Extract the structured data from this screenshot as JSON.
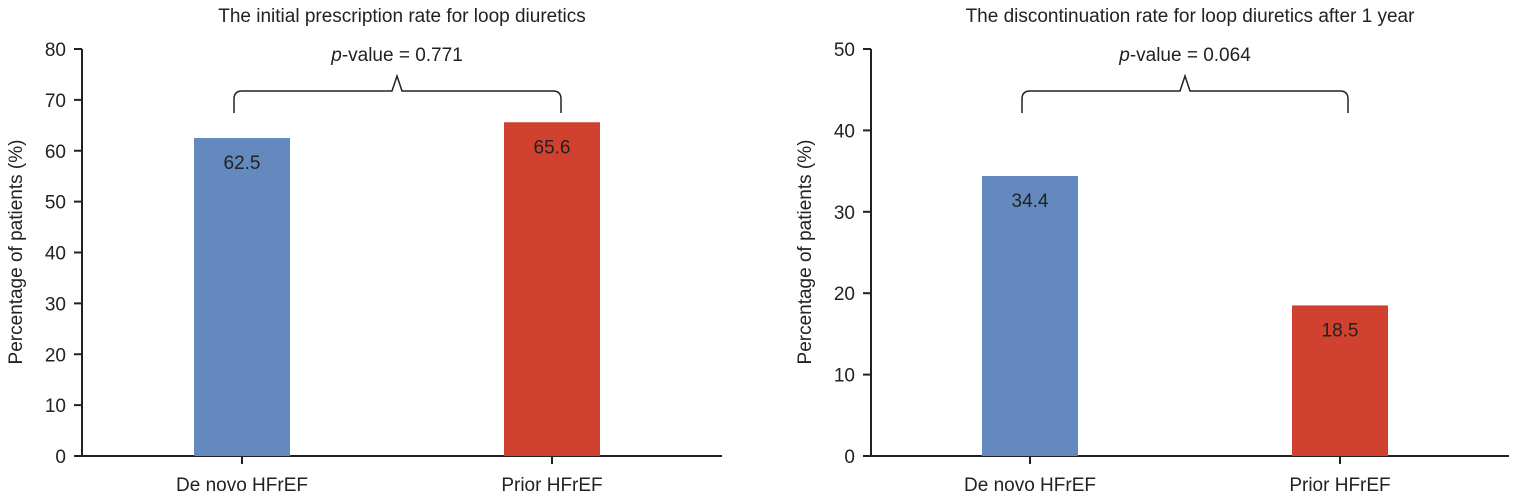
{
  "chart_data": [
    {
      "type": "bar",
      "title": "The initial prescription rate for loop diuretics",
      "ylabel": "Percentage of patients (%)",
      "xlabel": "",
      "categories": [
        "De novo HFrEF",
        "Prior HFrEF"
      ],
      "values": [
        62.5,
        65.6
      ],
      "data_labels": [
        "62.5",
        "65.6"
      ],
      "ylim": [
        0,
        80
      ],
      "yticks": [
        0,
        10,
        20,
        30,
        40,
        50,
        60,
        70,
        80
      ],
      "ytick_labels": [
        "0",
        "10",
        "20",
        "30",
        "40",
        "50",
        "60",
        "70",
        "80"
      ],
      "p_prefix": "p",
      "p_text": "-value = 0.771",
      "grid": false,
      "legend": "none",
      "colors": [
        "#6389bf",
        "#d0412f"
      ]
    },
    {
      "type": "bar",
      "title": "The discontinuation rate for loop diuretics after 1 year",
      "ylabel": "Percentage of patients (%)",
      "xlabel": "",
      "categories": [
        "De novo HFrEF",
        "Prior HFrEF"
      ],
      "values": [
        34.4,
        18.5
      ],
      "data_labels": [
        "34.4",
        "18.5"
      ],
      "ylim": [
        0,
        50
      ],
      "yticks": [
        0,
        10,
        20,
        30,
        40,
        50
      ],
      "ytick_labels": [
        "0",
        "10",
        "20",
        "30",
        "40",
        "50"
      ],
      "p_prefix": "p",
      "p_text": "-value = 0.064",
      "grid": false,
      "legend": "none",
      "colors": [
        "#6389bf",
        "#d0412f"
      ]
    }
  ]
}
